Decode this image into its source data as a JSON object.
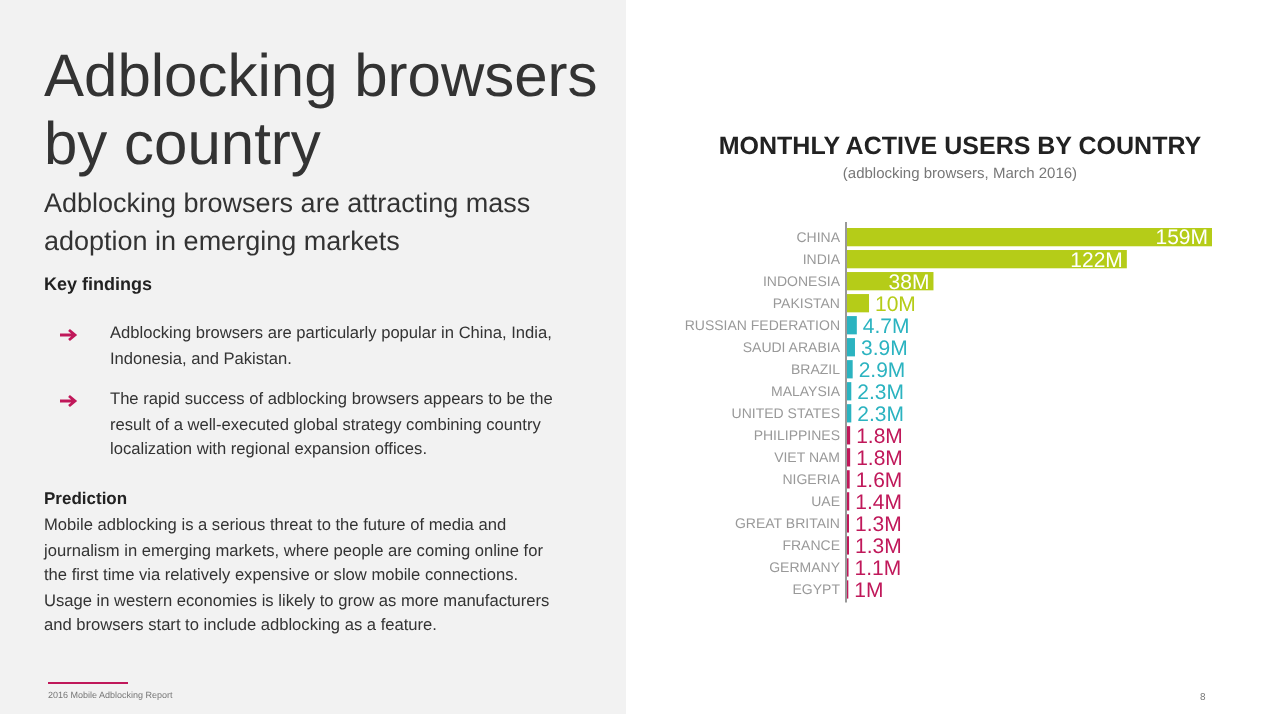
{
  "chart_data": {
    "type": "bar",
    "orientation": "horizontal",
    "relative": false,
    "title": "MONTHLY ACTIVE USERS BY COUNTRY",
    "subtitle": "(adblocking browsers, March 2016)",
    "categories": [
      "CHINA",
      "INDIA",
      "INDONESIA",
      "PAKISTAN",
      "RUSSIAN FEDERATION",
      "SAUDI ARABIA",
      "BRAZIL",
      "MALAYSIA",
      "UNITED STATES",
      "PHILIPPINES",
      "VIET NAM",
      "NIGERIA",
      "UAE",
      "GREAT BRITAIN",
      "FRANCE",
      "GERMANY",
      "EGYPT"
    ],
    "values": [
      159,
      122,
      38,
      10,
      4.7,
      3.9,
      2.9,
      2.3,
      2.3,
      1.8,
      1.8,
      1.6,
      1.4,
      1.3,
      1.3,
      1.1,
      1
    ],
    "value_labels": [
      "159M",
      "122M",
      "38M",
      "10M",
      "4.7M",
      "3.9M",
      "2.9M",
      "2.3M",
      "2.3M",
      "1.8M",
      "1.8M",
      "1.6M",
      "1.4M",
      "1.3M",
      "1.3M",
      "1.1M",
      "1M"
    ],
    "colors": [
      "#b5cc18",
      "#b5cc18",
      "#b5cc18",
      "#b5cc18",
      "#2bb3c0",
      "#2bb3c0",
      "#2bb3c0",
      "#2bb3c0",
      "#2bb3c0",
      "#c0185a",
      "#c0185a",
      "#c0185a",
      "#c0185a",
      "#c0185a",
      "#c0185a",
      "#c0185a",
      "#c0185a"
    ],
    "annotations": [
      "Adblocking browsers by country",
      "Adblocking browsers are attracting mass adoption in emerging markets",
      "Key findings",
      "Adblocking browsers are particularly popular in China, India, Indonesia, and Pakistan.",
      "The rapid success of adblocking browsers appears to be the result of a well-executed global strategy combining country localization with regional expansion offices.",
      "Prediction",
      "Mobile adblocking is a serious threat to the future of media and journalism in emerging markets, where people are coming online for the first time via relatively expensive or slow mobile connections. Usage in western economies is likely to grow as more manufacturers and browsers start to include adblocking as a feature.",
      "2016 Mobile Adblocking Report",
      "8"
    ]
  }
}
